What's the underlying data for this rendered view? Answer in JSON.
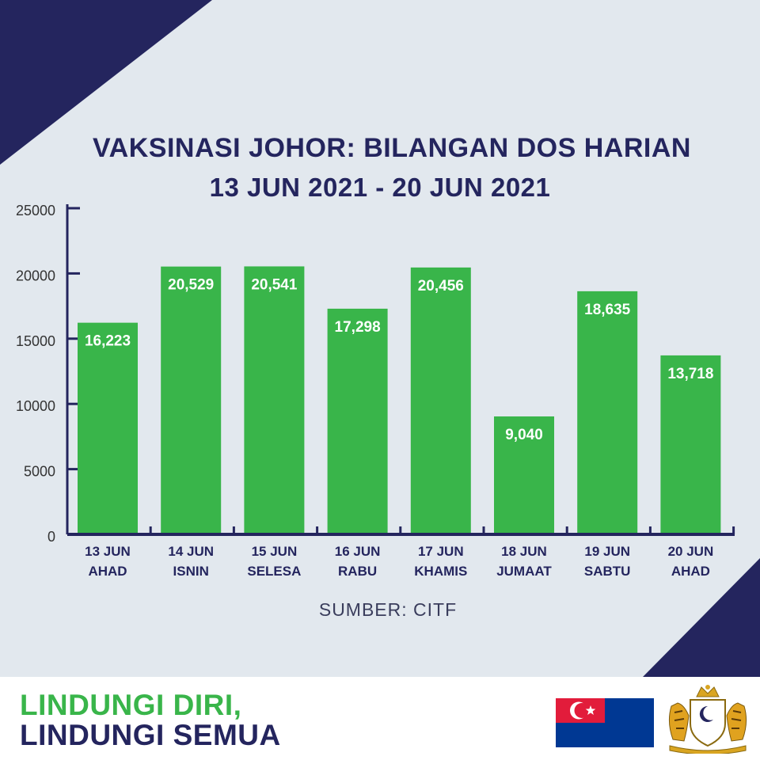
{
  "header": {
    "title": "VAKSINASI JOHOR: BILANGAN DOS HARIAN",
    "subtitle": "13 JUN 2021 - 20 JUN 2021"
  },
  "chart_data": {
    "type": "bar",
    "title": "VAKSINASI JOHOR: BILANGAN DOS HARIAN",
    "subtitle": "13 JUN 2021 - 20 JUN 2021",
    "categories": [
      [
        "13 JUN",
        "AHAD"
      ],
      [
        "14 JUN",
        "ISNIN"
      ],
      [
        "15 JUN",
        "SELESA"
      ],
      [
        "16 JUN",
        "RABU"
      ],
      [
        "17 JUN",
        "KHAMIS"
      ],
      [
        "18 JUN",
        "JUMAAT"
      ],
      [
        "19 JUN",
        "SABTU"
      ],
      [
        "20 JUN",
        "AHAD"
      ]
    ],
    "values": [
      16223,
      20529,
      20541,
      17298,
      20456,
      9040,
      18635,
      13718
    ],
    "value_labels": [
      "16,223",
      "20,529",
      "20,541",
      "17,298",
      "20,456",
      "9,040",
      "18,635",
      "13,718"
    ],
    "yticks": [
      0,
      5000,
      10000,
      15000,
      20000,
      25000
    ],
    "ylim": [
      0,
      25000
    ],
    "xlabel": "",
    "ylabel": "",
    "grid": false,
    "bar_color": "#39b54a",
    "axis_color": "#24255e",
    "source": "SUMBER: CITF"
  },
  "footer": {
    "slogan_line1": "LINDUNGI DIRI,",
    "slogan_line2": "LINDUNGI SEMUA"
  },
  "colors": {
    "background": "#e2e8ee",
    "navy": "#24255e",
    "green": "#39b54a",
    "flag_red": "#e21c3b",
    "flag_blue": "#003893"
  }
}
